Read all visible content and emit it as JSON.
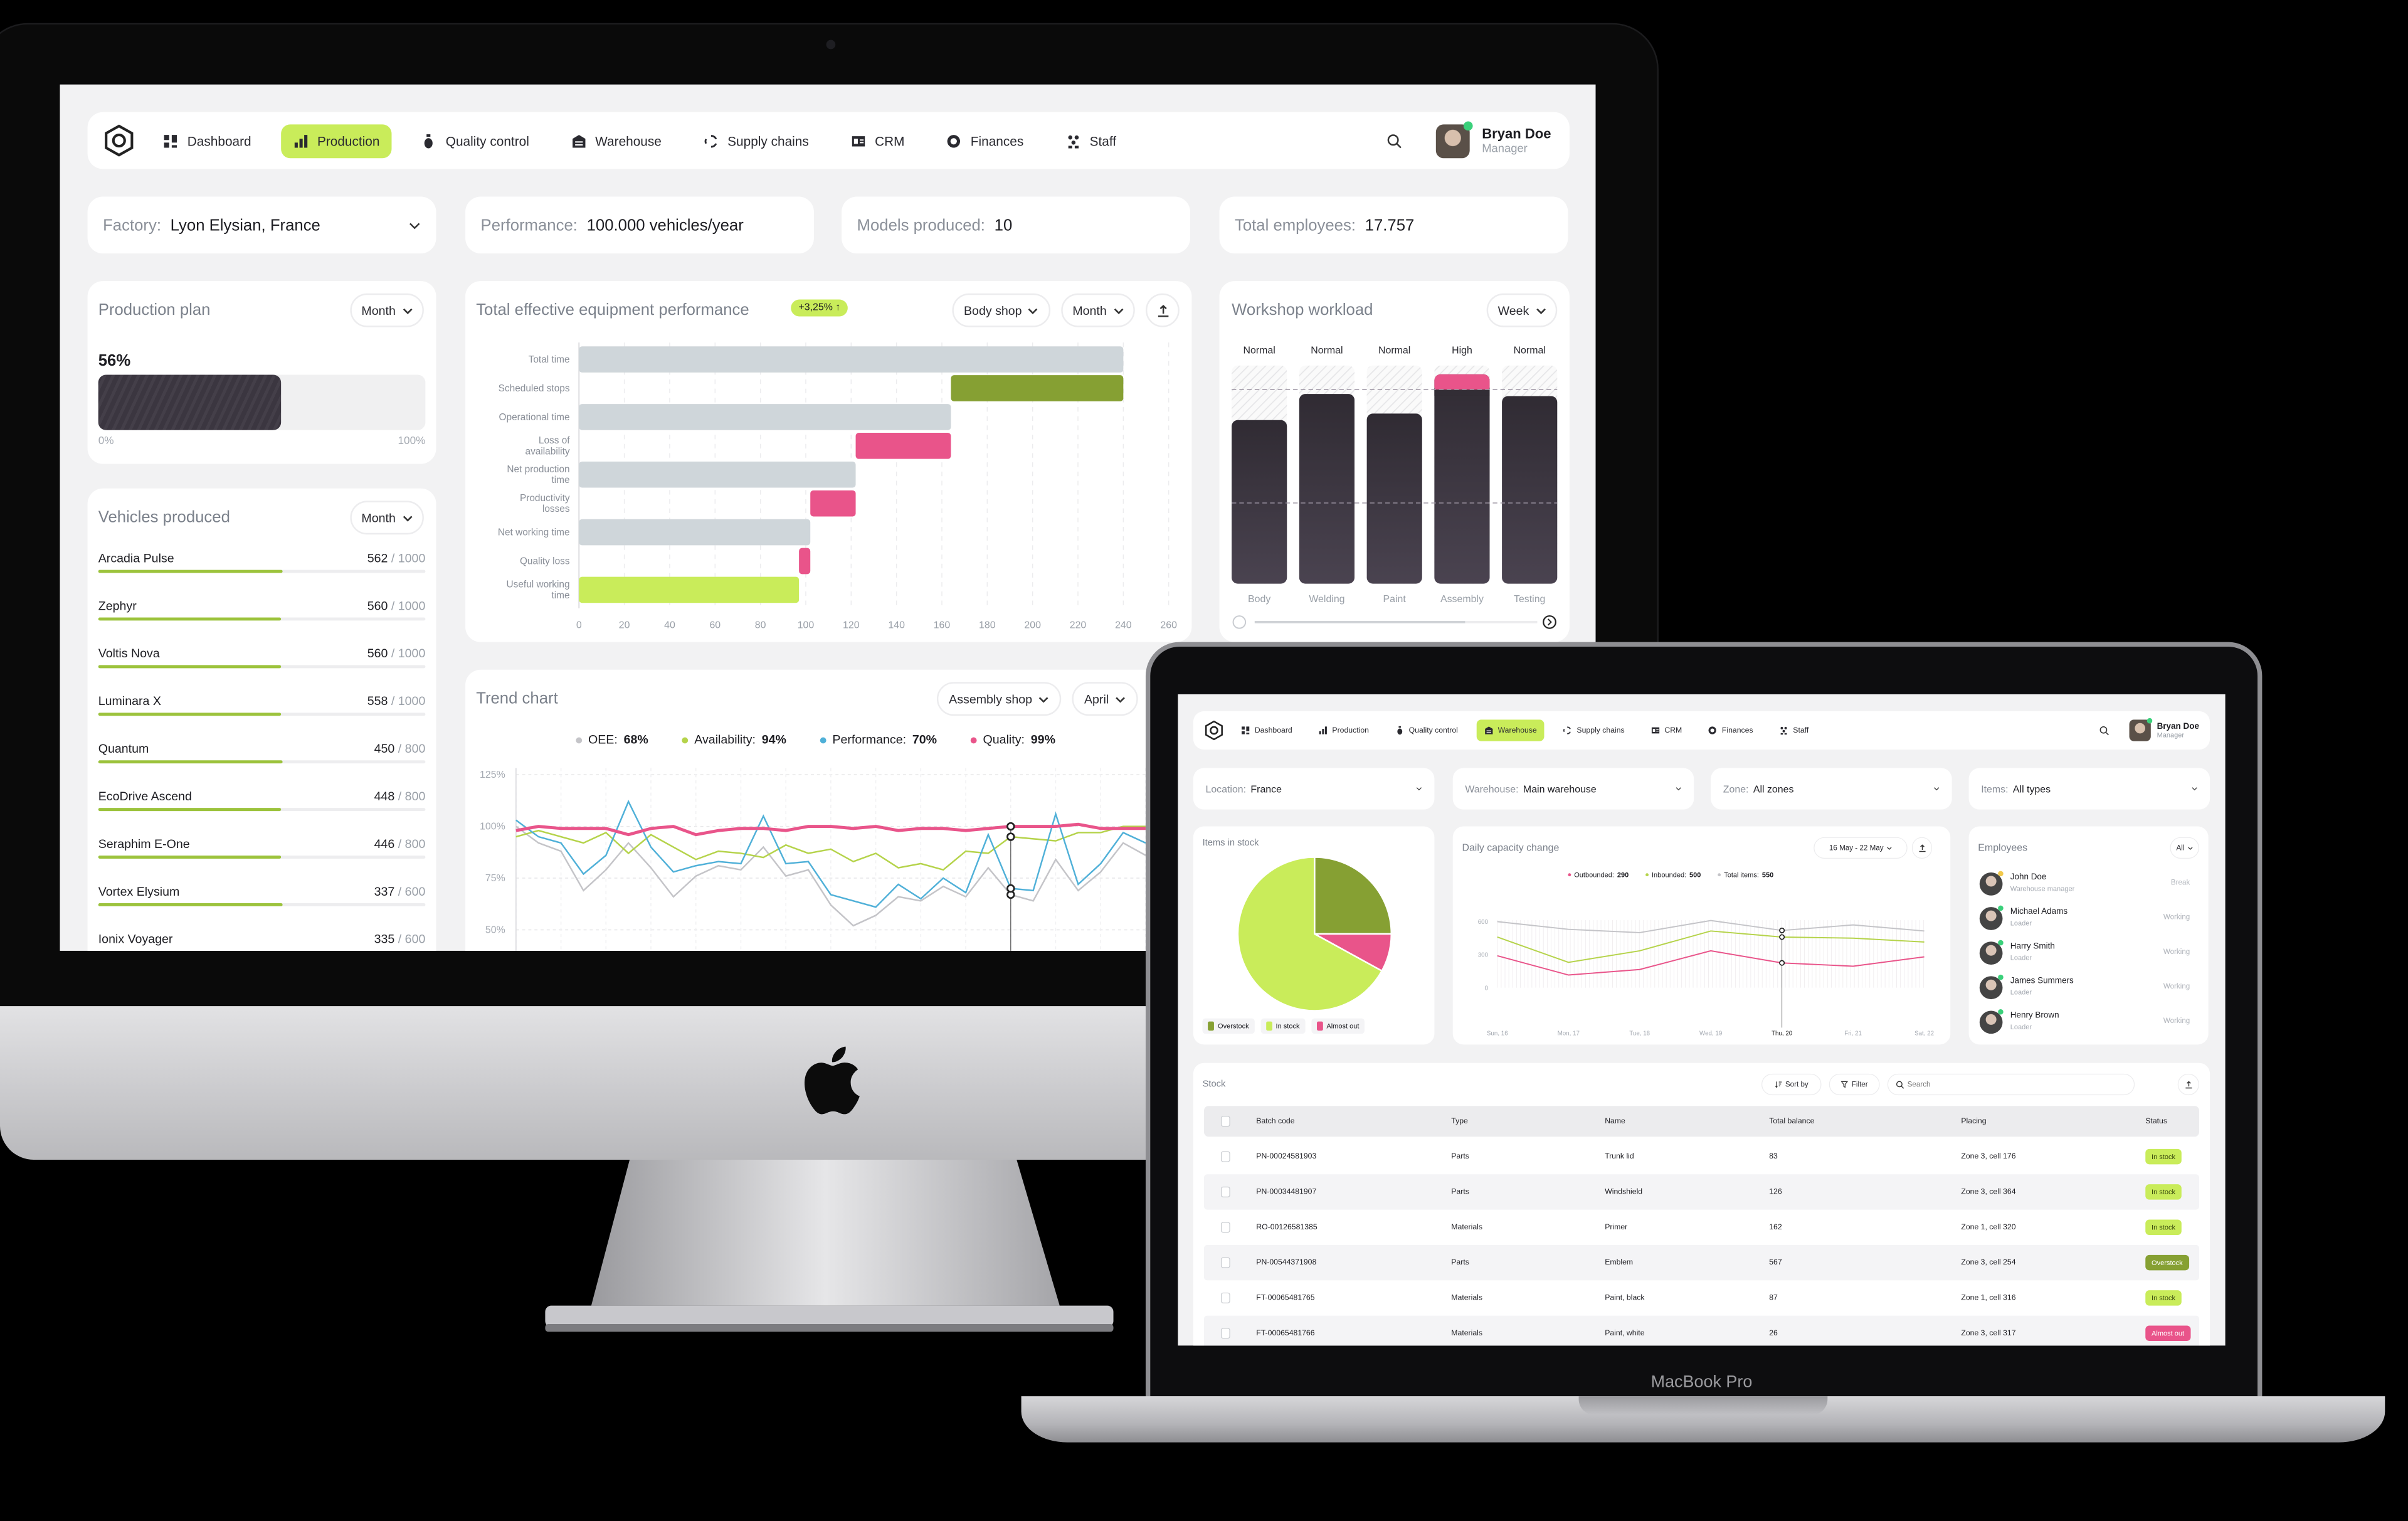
{
  "hardware": {
    "laptop_label": "MacBook Pro"
  },
  "colors": {
    "accent_lime": "#c9ec5a",
    "olive": "#86a033",
    "pink": "#e9548a",
    "bar_gray": "#cfd6da",
    "dark_bar": "#3a3540",
    "oee_gray": "#c4c4c8",
    "availability_green": "#b5d34a",
    "performance_blue": "#4fb0d8",
    "quality_pink": "#e9548a",
    "background": "#f2f2f3"
  },
  "imac": {
    "nav": {
      "items": [
        {
          "label": "Dashboard",
          "icon": "grid-icon"
        },
        {
          "label": "Production",
          "icon": "bar-chart-icon",
          "active": true
        },
        {
          "label": "Quality control",
          "icon": "flask-icon"
        },
        {
          "label": "Warehouse",
          "icon": "warehouse-icon"
        },
        {
          "label": "Supply chains",
          "icon": "cycle-icon"
        },
        {
          "label": "CRM",
          "icon": "id-card-icon"
        },
        {
          "label": "Finances",
          "icon": "coin-icon"
        },
        {
          "label": "Staff",
          "icon": "people-icon"
        }
      ],
      "user": {
        "name": "Bryan Doe",
        "role": "Manager"
      }
    },
    "filters": [
      {
        "label": "Factory:",
        "value": "Lyon Elysian,  France",
        "dropdown": true
      },
      {
        "label": "Performance:",
        "value": "100.000 vehicles/year"
      },
      {
        "label": "Models produced:",
        "value": "10"
      },
      {
        "label": "Total employees:",
        "value": "17.757"
      }
    ],
    "production_plan": {
      "title": "Production plan",
      "period": "Month",
      "percent_label": "56%",
      "progress_percent": 56,
      "min_label": "0%",
      "max_label": "100%"
    },
    "vehicles": {
      "title": "Vehicles produced",
      "period": "Month",
      "items": [
        {
          "name": "Arcadia Pulse",
          "produced": "562",
          "target": "/ 1000"
        },
        {
          "name": "Zephyr",
          "produced": "560",
          "target": "/ 1000"
        },
        {
          "name": "Voltis Nova",
          "produced": "560",
          "target": "/ 1000"
        },
        {
          "name": "Luminara X",
          "produced": "558",
          "target": "/ 1000"
        },
        {
          "name": "Quantum",
          "produced": "450",
          "target": "/ 800"
        },
        {
          "name": "EcoDrive Ascend",
          "produced": "448",
          "target": "/ 800"
        },
        {
          "name": "Seraphim E-One",
          "produced": "446",
          "target": "/ 800"
        },
        {
          "name": "Vortex Elysium",
          "produced": "337",
          "target": "/ 600"
        },
        {
          "name": "Ionix Voyager",
          "produced": "335",
          "target": "/ 600"
        }
      ]
    },
    "teep": {
      "title": "Total effective equipment performance",
      "badge": "+3,25% ↑",
      "shop": "Body shop",
      "period": "Month"
    },
    "trend": {
      "title": "Trend chart",
      "shop": "Assembly shop",
      "period": "April",
      "legend": [
        {
          "label": "OEE:",
          "value": "68%",
          "color": "#c4c4c8"
        },
        {
          "label": "Availability:",
          "value": "94%",
          "color": "#b5d34a"
        },
        {
          "label": "Performance:",
          "value": "70%",
          "color": "#4fb0d8"
        },
        {
          "label": "Quality:",
          "value": "99%",
          "color": "#e9548a"
        }
      ]
    },
    "workshop": {
      "title": "Workshop workload",
      "period": "Week"
    }
  },
  "laptop": {
    "nav": {
      "items": [
        {
          "label": "Dashboard",
          "icon": "grid-icon"
        },
        {
          "label": "Production",
          "icon": "bar-chart-icon"
        },
        {
          "label": "Quality control",
          "icon": "flask-icon"
        },
        {
          "label": "Warehouse",
          "icon": "warehouse-icon",
          "active": true
        },
        {
          "label": "Supply chains",
          "icon": "cycle-icon"
        },
        {
          "label": "CRM",
          "icon": "id-card-icon"
        },
        {
          "label": "Finances",
          "icon": "coin-icon"
        },
        {
          "label": "Staff",
          "icon": "people-icon"
        }
      ],
      "user": {
        "name": "Bryan Doe",
        "role": "Manager"
      }
    },
    "filters": [
      {
        "label": "Location:",
        "value": "France"
      },
      {
        "label": "Warehouse:",
        "value": "Main warehouse"
      },
      {
        "label": "Zone:",
        "value": "All zones"
      },
      {
        "label": "Items:",
        "value": "All types"
      }
    ],
    "items_in_stock": {
      "title": "Items in stock"
    },
    "capacity": {
      "title": "Daily capacity change",
      "range": "16 May - 22 May",
      "legend": [
        {
          "label": "Outbounded:",
          "value": "290",
          "color": "#e9548a"
        },
        {
          "label": "Inbounded:",
          "value": "500",
          "color": "#b5d34a"
        },
        {
          "label": "Total items:",
          "value": "550",
          "color": "#c4c4c8"
        }
      ]
    },
    "employees": {
      "title": "Employees",
      "filter": "All",
      "items": [
        {
          "name": "John Doe",
          "role": "Warehouse manager",
          "status": "Break",
          "presence": "#f2c94c"
        },
        {
          "name": "Michael Adams",
          "role": "Loader",
          "status": "Working",
          "presence": "#3ad07a"
        },
        {
          "name": "Harry Smith",
          "role": "Loader",
          "status": "Working",
          "presence": "#3ad07a"
        },
        {
          "name": "James Summers",
          "role": "Loader",
          "status": "Working",
          "presence": "#3ad07a"
        },
        {
          "name": "Henry Brown",
          "role": "Loader",
          "status": "Working",
          "presence": "#3ad07a"
        }
      ]
    },
    "stock": {
      "title": "Stock",
      "sort_label": "Sort by",
      "filter_label": "Filter",
      "search_placeholder": "Search",
      "columns": [
        "Batch code",
        "Type",
        "Name",
        "Total balance",
        "Placing",
        "Status"
      ],
      "rows": [
        [
          "PN-00024581903",
          "Parts",
          "Trunk lid",
          "83",
          "Zone 3, cell 176",
          "In stock"
        ],
        [
          "PN-00034481907",
          "Parts",
          "Windshield",
          "126",
          "Zone 3, cell 364",
          "In stock"
        ],
        [
          "RO-00126581385",
          "Materials",
          "Primer",
          "162",
          "Zone 1, cell 320",
          "In stock"
        ],
        [
          "PN-00544371908",
          "Parts",
          "Emblem",
          "567",
          "Zone 3, cell 254",
          "Overstock"
        ],
        [
          "FT-00065481765",
          "Materials",
          "Paint, black",
          "87",
          "Zone 1, cell 316",
          "In stock"
        ],
        [
          "FT-00065481766",
          "Materials",
          "Paint, white",
          "26",
          "Zone 3, cell 317",
          "Almost out"
        ]
      ]
    }
  },
  "chart_data": [
    {
      "id": "teep",
      "type": "bar",
      "orientation": "horizontal",
      "style": "waterfall",
      "categories": [
        "Total time",
        "Scheduled stops",
        "Operational time",
        "Loss of availability",
        "Net production time",
        "Productivity losses",
        "Net working time",
        "Quality loss",
        "Useful working time"
      ],
      "ranges": [
        [
          0,
          240
        ],
        [
          164,
          240
        ],
        [
          0,
          164
        ],
        [
          122,
          164
        ],
        [
          0,
          122
        ],
        [
          102,
          122
        ],
        [
          0,
          102
        ],
        [
          97,
          102
        ],
        [
          0,
          97
        ]
      ],
      "colors": [
        "#cfd6da",
        "#86a033",
        "#cfd6da",
        "#e9548a",
        "#cfd6da",
        "#e9548a",
        "#cfd6da",
        "#e9548a",
        "#c9ec5a"
      ],
      "xlim": [
        0,
        260
      ],
      "xticks": [
        0,
        20,
        40,
        60,
        80,
        100,
        120,
        140,
        160,
        180,
        200,
        220,
        240,
        260
      ],
      "grid": true
    },
    {
      "id": "workload",
      "type": "bar",
      "categories": [
        "Body",
        "Welding",
        "Paint",
        "Assembly",
        "Testing"
      ],
      "status_labels": [
        "Normal",
        "Normal",
        "Normal",
        "High",
        "Normal"
      ],
      "values_percent": [
        75,
        87,
        78,
        96,
        86
      ],
      "threshold_percent": 89,
      "reference_percent": 37,
      "ylim": [
        0,
        100
      ]
    },
    {
      "id": "trend",
      "type": "line",
      "yticks": [
        "125%",
        "100%",
        "75%",
        "50%"
      ],
      "ylim": [
        45,
        125
      ],
      "highlight_index": 22,
      "grid": true,
      "series": [
        {
          "name": "OEE",
          "color": "#c4c4c8",
          "values": [
            100,
            92,
            88,
            69,
            79,
            92,
            80,
            66,
            76,
            81,
            79,
            90,
            76,
            79,
            62,
            52,
            57,
            66,
            64,
            71,
            66,
            80,
            67,
            64,
            84,
            69,
            78,
            92,
            86
          ]
        },
        {
          "name": "Availability",
          "color": "#b5d34a",
          "values": [
            95,
            98,
            95,
            92,
            97,
            87,
            96,
            90,
            84,
            88,
            87,
            85,
            91,
            87,
            89,
            83,
            87,
            80,
            82,
            79,
            88,
            87,
            95,
            94,
            93,
            97,
            97,
            100,
            100
          ]
        },
        {
          "name": "Performance",
          "color": "#4fb0d8",
          "values": [
            103,
            95,
            92,
            77,
            86,
            112,
            90,
            78,
            81,
            83,
            82,
            105,
            82,
            83,
            67,
            64,
            61,
            72,
            65,
            75,
            68,
            96,
            70,
            69,
            106,
            72,
            82,
            97,
            92
          ]
        },
        {
          "name": "Quality",
          "color": "#e9548a",
          "values": [
            98,
            100,
            99,
            99,
            99,
            96,
            99,
            100,
            96,
            98,
            99,
            99,
            98,
            100,
            100,
            99,
            100,
            98,
            99,
            99,
            98,
            99,
            100,
            100,
            100,
            101,
            99,
            99,
            99
          ]
        }
      ]
    },
    {
      "id": "items_in_stock",
      "type": "pie",
      "slices": [
        {
          "label": "Overstock",
          "value": 25,
          "color": "#86a033"
        },
        {
          "label": "Almost out",
          "value": 8,
          "color": "#e9548a"
        },
        {
          "label": "In stock",
          "value": 67,
          "color": "#c9ec5a"
        }
      ],
      "legend_order": [
        "Overstock",
        "In stock",
        "Almost out"
      ],
      "legend": "bottom"
    },
    {
      "id": "capacity",
      "type": "line",
      "categories": [
        "Sun, 16",
        "Mon, 17",
        "Tue, 18",
        "Wed, 19",
        "Thu, 20",
        "Fri, 21",
        "Sat, 22"
      ],
      "yticks": [
        "600",
        "300",
        "0"
      ],
      "ylim": [
        0,
        600
      ],
      "highlight_index": 4,
      "series": [
        {
          "name": "Total items",
          "color": "#c4c4c8",
          "values": [
            600,
            530,
            500,
            610,
            520,
            570,
            515
          ]
        },
        {
          "name": "Inbounded",
          "color": "#b5d34a",
          "values": [
            460,
            230,
            335,
            515,
            460,
            450,
            415
          ]
        },
        {
          "name": "Outbounded",
          "color": "#e9548a",
          "values": [
            290,
            115,
            165,
            335,
            225,
            195,
            280
          ]
        }
      ]
    }
  ]
}
